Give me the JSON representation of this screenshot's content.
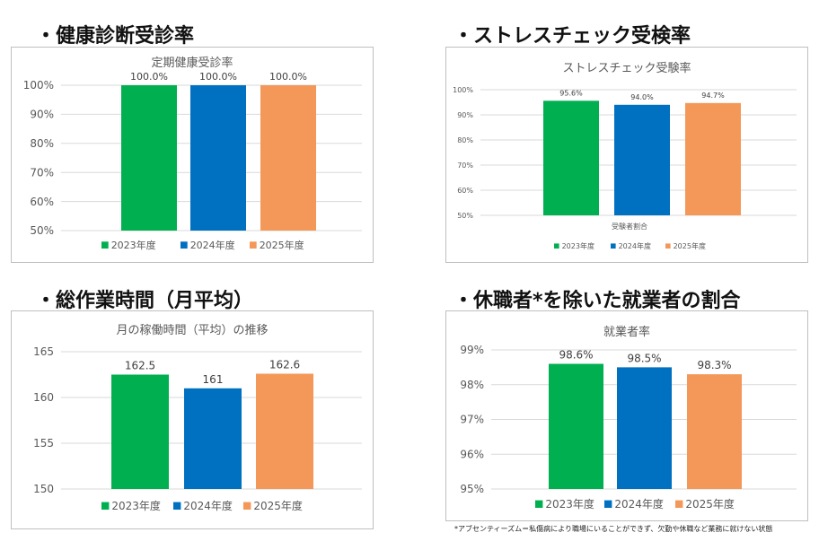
{
  "headings": {
    "h1": "・健康診断受診率",
    "h2": "・ストレスチェック受検率",
    "h3": "・総作業時間（月平均）",
    "h4": "・休職者*を除いた就業者の割合"
  },
  "footnote": "*アブセンティーズム＝私傷病により職場にいることができず、欠勤や休職など業務に就けない状態",
  "colors": {
    "y2023": "#00b050",
    "y2024": "#0070c0",
    "y2025": "#f4985a",
    "grid": "#d9d9d9",
    "axis": "#595959"
  },
  "chart_data": [
    {
      "type": "bar",
      "title": "定期健康受診率",
      "categories": [
        "2023年度",
        "2024年度",
        "2025年度"
      ],
      "values": [
        100.0,
        100.0,
        100.0
      ],
      "value_labels": [
        "100.0%",
        "100.0%",
        "100.0%"
      ],
      "ylim": [
        50,
        100
      ],
      "yticks": [
        "50%",
        "60%",
        "70%",
        "80%",
        "90%",
        "100%"
      ],
      "xlabel": "",
      "legend": "bottom"
    },
    {
      "type": "bar",
      "title": "ストレスチェック受験率",
      "categories": [
        "2023年度",
        "2024年度",
        "2025年度"
      ],
      "values": [
        95.6,
        94.0,
        94.7
      ],
      "value_labels": [
        "95.6%",
        "94.0%",
        "94.7%"
      ],
      "ylim": [
        50,
        100
      ],
      "yticks": [
        "50%",
        "60%",
        "70%",
        "80%",
        "90%",
        "100%"
      ],
      "xlabel": "受験者割合",
      "legend": "bottom"
    },
    {
      "type": "bar",
      "title": "月の稼働時間（平均）の推移",
      "categories": [
        "2023年度",
        "2024年度",
        "2025年度"
      ],
      "values": [
        162.5,
        161,
        162.6
      ],
      "value_labels": [
        "162.5",
        "161",
        "162.6"
      ],
      "ylim": [
        150,
        165
      ],
      "yticks": [
        "150",
        "155",
        "160",
        "165"
      ],
      "xlabel": "",
      "legend": "bottom"
    },
    {
      "type": "bar",
      "title": "就業者率",
      "categories": [
        "2023年度",
        "2024年度",
        "2025年度"
      ],
      "values": [
        98.6,
        98.5,
        98.3
      ],
      "value_labels": [
        "98.6%",
        "98.5%",
        "98.3%"
      ],
      "ylim": [
        95,
        99
      ],
      "yticks": [
        "95%",
        "96%",
        "97%",
        "98%",
        "99%"
      ],
      "xlabel": "",
      "legend": "bottom"
    }
  ]
}
